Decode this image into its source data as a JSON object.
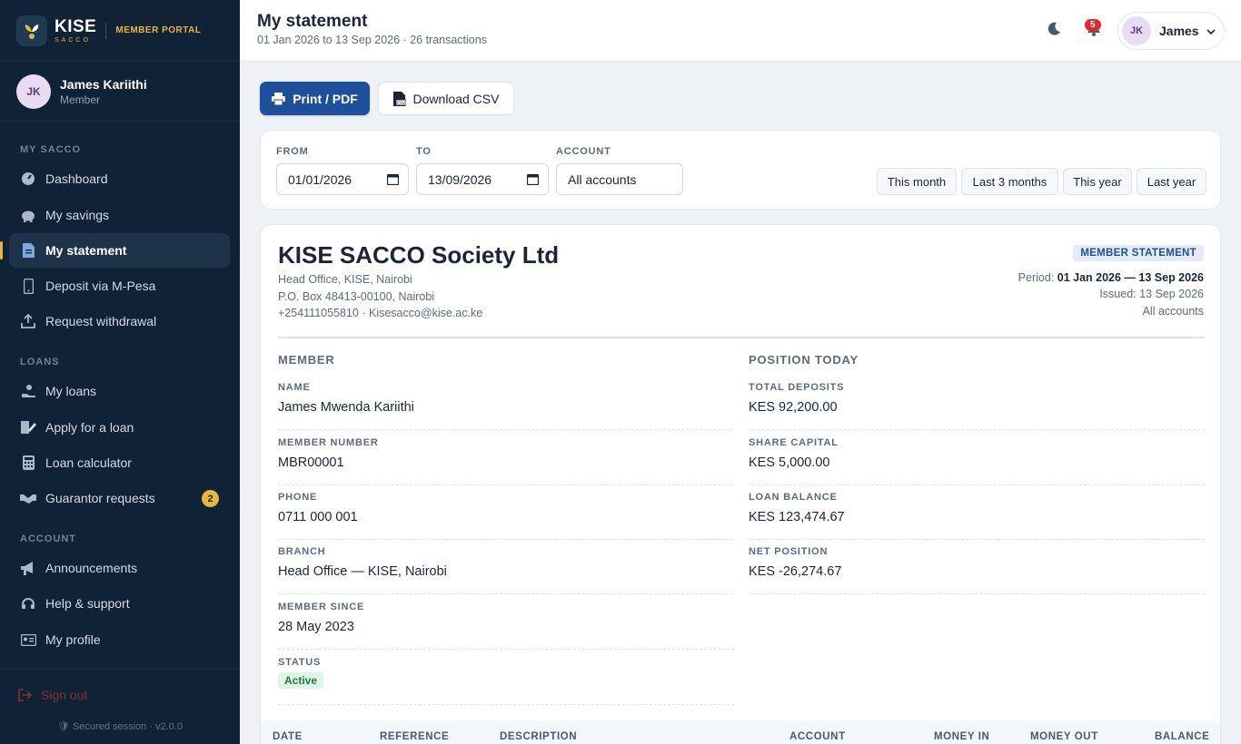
{
  "brand": {
    "name": "KISE",
    "sub": "SACCO",
    "portal": "MEMBER PORTAL"
  },
  "user": {
    "initials": "JK",
    "name": "James Kariithi",
    "role": "Member",
    "short_name": "James"
  },
  "nav": {
    "sections": {
      "my_sacco": "MY SACCO",
      "loans": "LOANS",
      "account": "ACCOUNT"
    },
    "items": {
      "dashboard": "Dashboard",
      "savings": "My savings",
      "statement": "My statement",
      "deposit": "Deposit via M-Pesa",
      "withdrawal": "Request withdrawal",
      "loans": "My loans",
      "apply": "Apply for a loan",
      "calculator": "Loan calculator",
      "guarantor": "Guarantor requests",
      "announcements": "Announcements",
      "help": "Help & support",
      "profile": "My profile"
    },
    "guarantor_count": "2",
    "signout": "Sign out",
    "secured": "Secured session · v2.0.0"
  },
  "header": {
    "title": "My statement",
    "subtitle": "01 Jan 2026 to 13 Sep 2026 · 26 transactions",
    "notifications": "5"
  },
  "toolbar": {
    "print": "Print / PDF",
    "csv": "Download CSV"
  },
  "filters": {
    "from_label": "FROM",
    "from_value": "01/01/2026",
    "to_label": "TO",
    "to_value": "13/09/2026",
    "account_label": "ACCOUNT",
    "account_value": "All accounts",
    "quick": {
      "this_month": "This month",
      "last3": "Last 3 months",
      "this_year": "This year",
      "last_year": "Last year"
    }
  },
  "statement": {
    "org": "KISE SACCO Society Ltd",
    "address1": "Head Office, KISE, Nairobi",
    "address2": "P.O. Box 48413-00100, Nairobi",
    "contact": "+254111055810 · Kisesacco@kise.ac.ke",
    "badge": "MEMBER STATEMENT",
    "period_label": "Period:",
    "period": "01 Jan 2026 — 13 Sep 2026",
    "issued": "Issued: 13 Sep 2026",
    "accounts": "All accounts",
    "member_head": "MEMBER",
    "position_head": "POSITION TODAY",
    "member": {
      "name_label": "NAME",
      "name": "James Mwenda Kariithi",
      "number_label": "MEMBER NUMBER",
      "number": "MBR00001",
      "phone_label": "PHONE",
      "phone": "0711 000 001",
      "branch_label": "BRANCH",
      "branch": "Head Office — KISE, Nairobi",
      "since_label": "MEMBER SINCE",
      "since": "28 May 2023",
      "status_label": "STATUS",
      "status": "Active"
    },
    "position": {
      "deposits_label": "TOTAL DEPOSITS",
      "deposits": "KES 92,200.00",
      "share_label": "SHARE CAPITAL",
      "share": "KES 5,000.00",
      "loan_label": "LOAN BALANCE",
      "loan": "KES 123,474.67",
      "net_label": "NET POSITION",
      "net": "KES -26,274.67"
    },
    "table_headers": {
      "date": "DATE",
      "reference": "REFERENCE",
      "description": "DESCRIPTION",
      "account": "ACCOUNT",
      "money_in": "MONEY IN",
      "money_out": "MONEY OUT",
      "balance": "BALANCE"
    }
  },
  "colors": {
    "sidebar": "#0f2236",
    "accent": "#e8b63d",
    "primary": "#1d4f9a",
    "danger": "#e0282e"
  }
}
